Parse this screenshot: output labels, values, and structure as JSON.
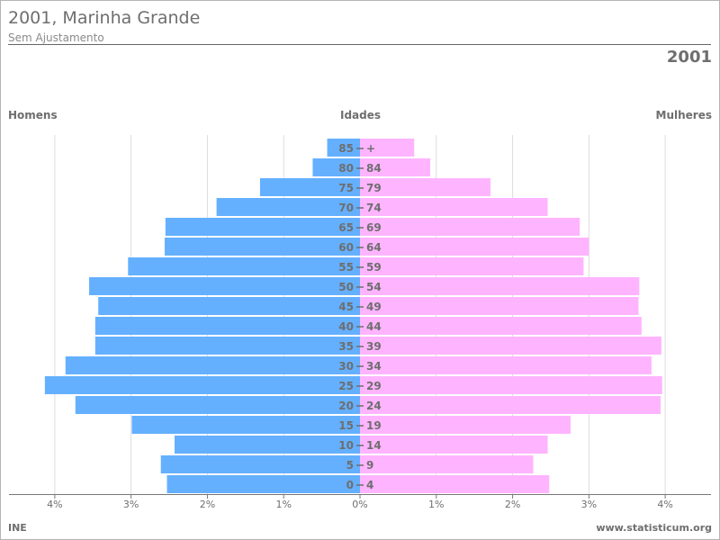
{
  "header": {
    "title": "2001, Marinha Grande",
    "subtitle": "Sem Ajustamento",
    "year": "2001"
  },
  "labels": {
    "men": "Homens",
    "ages": "Idades",
    "women": "Mulheres"
  },
  "footer": {
    "source": "INE",
    "site": "www.statisticum.org"
  },
  "colors": {
    "men": "#64b0ff",
    "women": "#ffb4ff",
    "grid": "#dddddd",
    "axis": "#777777",
    "text": "#6e6e6e"
  },
  "chart_data": {
    "type": "bar",
    "orientation": "horizontal",
    "categories": [
      "0 - 4",
      "5 - 9",
      "10 - 14",
      "15 - 19",
      "20 - 24",
      "25 - 29",
      "30 - 34",
      "35 - 39",
      "40 - 44",
      "45 - 49",
      "50 - 54",
      "55 - 59",
      "60 - 64",
      "65 - 69",
      "70 - 74",
      "75 - 79",
      "80 - 84",
      "85 +"
    ],
    "category_start": [
      "0",
      "5",
      "10",
      "15",
      "20",
      "25",
      "30",
      "35",
      "40",
      "45",
      "50",
      "55",
      "60",
      "65",
      "70",
      "75",
      "80",
      "85"
    ],
    "category_end": [
      "4",
      "9",
      "14",
      "19",
      "24",
      "29",
      "34",
      "39",
      "44",
      "49",
      "54",
      "59",
      "64",
      "69",
      "74",
      "79",
      "84",
      "+"
    ],
    "series": [
      {
        "name": "Homens",
        "values": [
          2.53,
          2.61,
          2.43,
          2.99,
          3.73,
          4.13,
          3.86,
          3.47,
          3.47,
          3.43,
          3.55,
          3.04,
          2.56,
          2.55,
          1.88,
          1.31,
          0.62,
          0.43
        ]
      },
      {
        "name": "Mulheres",
        "values": [
          2.48,
          2.27,
          2.46,
          2.76,
          3.94,
          3.96,
          3.82,
          3.95,
          3.69,
          3.65,
          3.66,
          2.93,
          3.0,
          2.88,
          2.46,
          1.71,
          0.92,
          0.71
        ]
      }
    ],
    "xlim": [
      -4.6,
      4.6
    ],
    "x_ticks": [
      -4,
      -3,
      -2,
      -1,
      0,
      1,
      2,
      3,
      4
    ],
    "x_tick_labels": [
      "4%",
      "3%",
      "2%",
      "1%",
      "0%",
      "1%",
      "2%",
      "3%",
      "4%"
    ],
    "unit": "%",
    "grid": true,
    "legend": "none"
  }
}
